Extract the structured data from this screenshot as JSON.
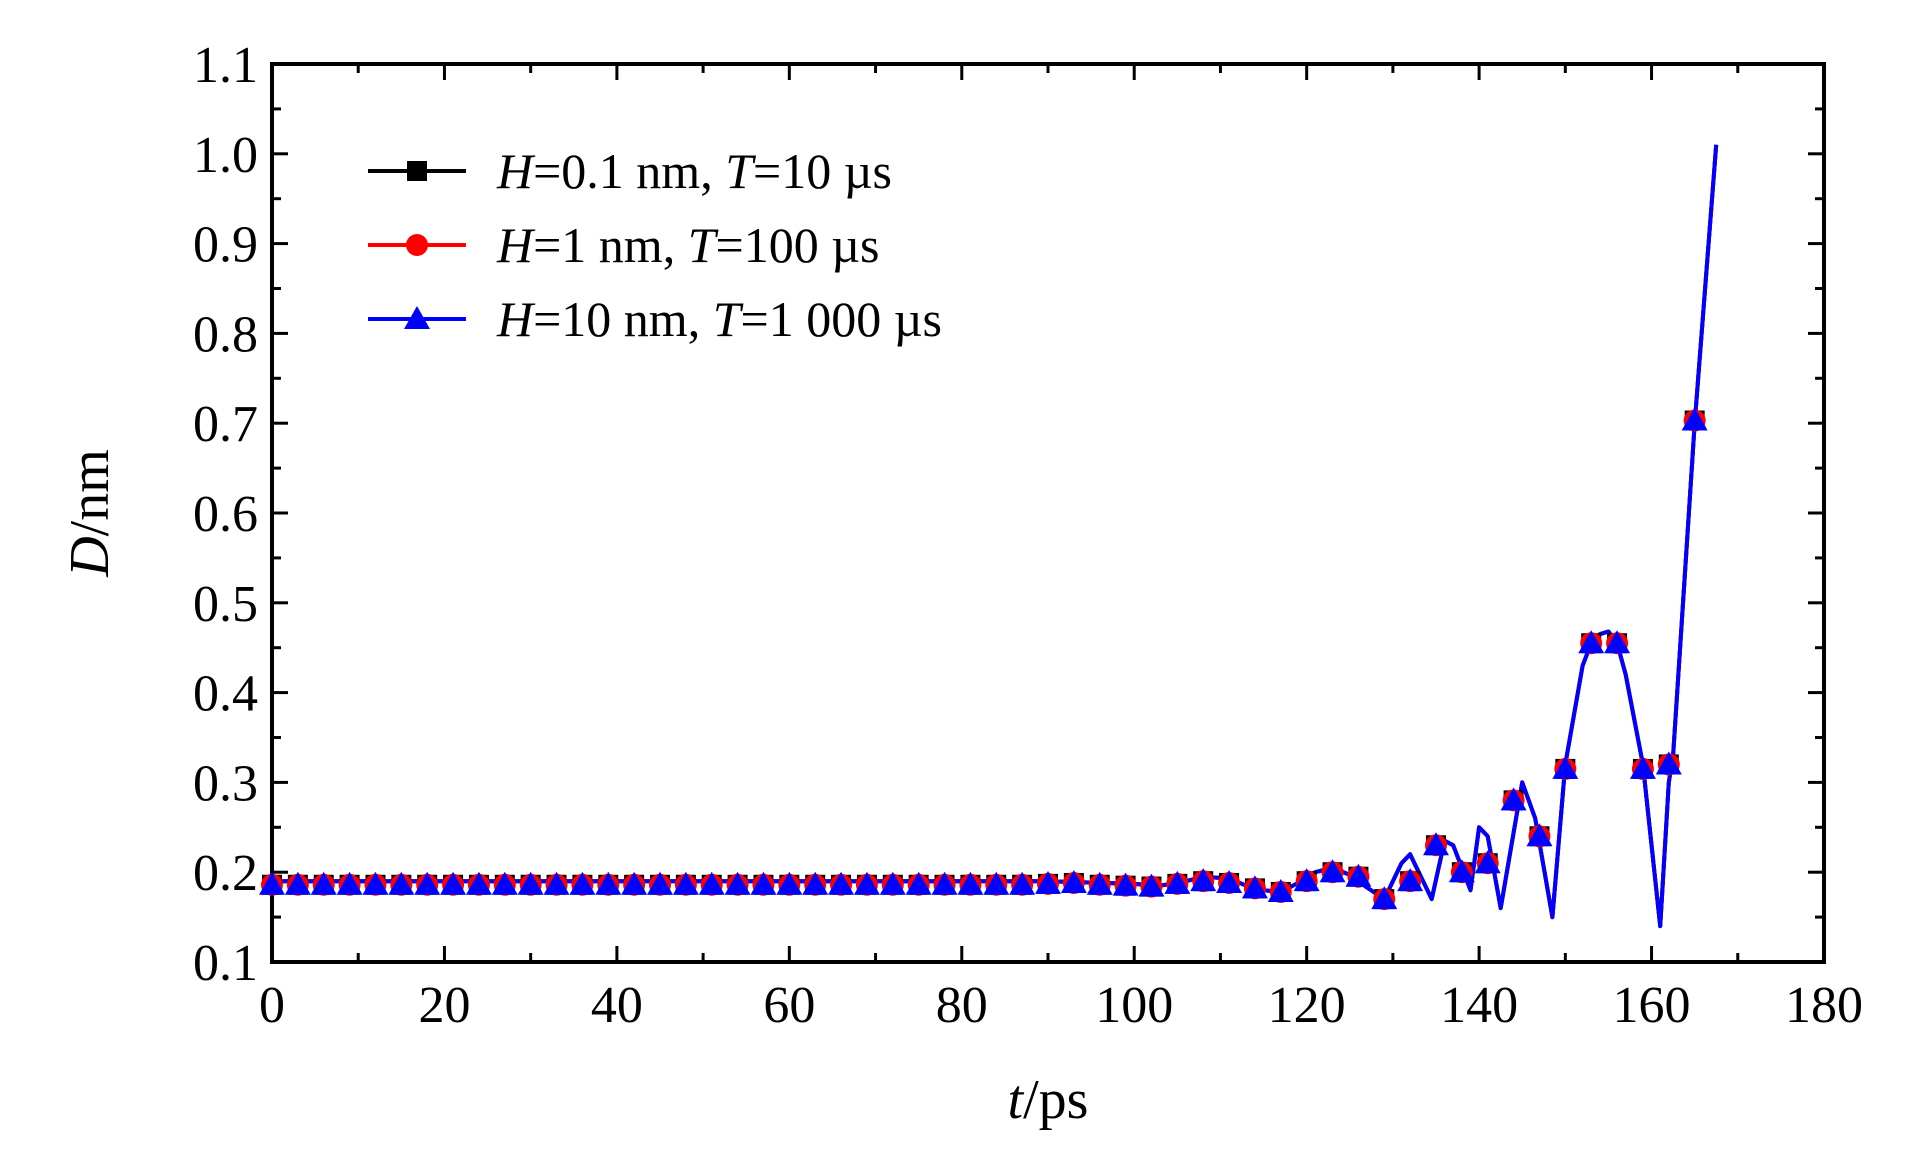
{
  "chart_data": {
    "type": "line",
    "xlabel": {
      "var": "t",
      "unit": "/ps"
    },
    "ylabel": {
      "var": "D",
      "unit": "/nm"
    },
    "xlim": [
      0,
      180
    ],
    "ylim": [
      0.1,
      1.1
    ],
    "x_ticks": [
      "0",
      "20",
      "40",
      "60",
      "80",
      "100",
      "120",
      "140",
      "160",
      "180"
    ],
    "y_ticks": [
      "0.1",
      "0.2",
      "0.3",
      "0.4",
      "0.5",
      "0.6",
      "0.7",
      "0.8",
      "0.9",
      "1.0",
      "1.1"
    ],
    "grid": false,
    "legend_position": "top-left",
    "series": [
      {
        "legend": {
          "v1": "H",
          "s1": "=0.1 nm, ",
          "v2": "T",
          "s2": "=10 µs"
        },
        "color": "#000000",
        "marker": "square"
      },
      {
        "legend": {
          "v1": "H",
          "s1": "=1 nm, ",
          "v2": "T",
          "s2": "=100 µs"
        },
        "color": "#ff0000",
        "marker": "circle"
      },
      {
        "legend": {
          "v1": "H",
          "s1": "=10 nm, ",
          "v2": "T",
          "s2": "=1 000 µs"
        },
        "color": "#0000ff",
        "marker": "triangle"
      }
    ],
    "line_points": [
      [
        0,
        0.19
      ],
      [
        10,
        0.19
      ],
      [
        20,
        0.19
      ],
      [
        30,
        0.19
      ],
      [
        40,
        0.19
      ],
      [
        50,
        0.19
      ],
      [
        60,
        0.19
      ],
      [
        70,
        0.19
      ],
      [
        80,
        0.19
      ],
      [
        90,
        0.19
      ],
      [
        100,
        0.187
      ],
      [
        103,
        0.185
      ],
      [
        106,
        0.19
      ],
      [
        108,
        0.195
      ],
      [
        111,
        0.193
      ],
      [
        113,
        0.185
      ],
      [
        115,
        0.18
      ],
      [
        117,
        0.178
      ],
      [
        119,
        0.188
      ],
      [
        121,
        0.2
      ],
      [
        123,
        0.205
      ],
      [
        125,
        0.197
      ],
      [
        127,
        0.183
      ],
      [
        129,
        0.17
      ],
      [
        131,
        0.21
      ],
      [
        132,
        0.22
      ],
      [
        133.5,
        0.19
      ],
      [
        134.5,
        0.17
      ],
      [
        136,
        0.235
      ],
      [
        137,
        0.23
      ],
      [
        139,
        0.18
      ],
      [
        140,
        0.25
      ],
      [
        141,
        0.24
      ],
      [
        142.5,
        0.16
      ],
      [
        145,
        0.3
      ],
      [
        146.5,
        0.26
      ],
      [
        148.5,
        0.15
      ],
      [
        150,
        0.32
      ],
      [
        152,
        0.43
      ],
      [
        153,
        0.455
      ],
      [
        154,
        0.465
      ],
      [
        155,
        0.468
      ],
      [
        156,
        0.455
      ],
      [
        157,
        0.42
      ],
      [
        159,
        0.32
      ],
      [
        161,
        0.14
      ],
      [
        162,
        0.3
      ],
      [
        162.5,
        0.33
      ],
      [
        165,
        0.7
      ],
      [
        167.5,
        1.01
      ]
    ],
    "marker_points": [
      [
        0,
        0.186
      ],
      [
        3,
        0.186
      ],
      [
        6,
        0.186
      ],
      [
        9,
        0.186
      ],
      [
        12,
        0.186
      ],
      [
        15,
        0.186
      ],
      [
        18,
        0.186
      ],
      [
        21,
        0.186
      ],
      [
        24,
        0.186
      ],
      [
        27,
        0.186
      ],
      [
        30,
        0.186
      ],
      [
        33,
        0.186
      ],
      [
        36,
        0.186
      ],
      [
        39,
        0.186
      ],
      [
        42,
        0.186
      ],
      [
        45,
        0.186
      ],
      [
        48,
        0.186
      ],
      [
        51,
        0.186
      ],
      [
        54,
        0.186
      ],
      [
        57,
        0.186
      ],
      [
        60,
        0.186
      ],
      [
        63,
        0.186
      ],
      [
        66,
        0.186
      ],
      [
        69,
        0.186
      ],
      [
        72,
        0.186
      ],
      [
        75,
        0.186
      ],
      [
        78,
        0.186
      ],
      [
        81,
        0.186
      ],
      [
        84,
        0.186
      ],
      [
        87,
        0.186
      ],
      [
        90,
        0.187
      ],
      [
        93,
        0.188
      ],
      [
        96,
        0.186
      ],
      [
        99,
        0.185
      ],
      [
        102,
        0.184
      ],
      [
        105,
        0.187
      ],
      [
        108,
        0.19
      ],
      [
        111,
        0.188
      ],
      [
        114,
        0.182
      ],
      [
        117,
        0.178
      ],
      [
        120,
        0.19
      ],
      [
        123,
        0.2
      ],
      [
        126,
        0.195
      ],
      [
        129,
        0.17
      ],
      [
        132,
        0.19
      ],
      [
        135,
        0.23
      ],
      [
        138,
        0.2
      ],
      [
        141,
        0.21
      ],
      [
        144,
        0.28
      ],
      [
        147,
        0.24
      ],
      [
        150,
        0.315
      ],
      [
        153,
        0.455
      ],
      [
        156,
        0.455
      ],
      [
        159,
        0.315
      ],
      [
        162,
        0.32
      ],
      [
        165,
        0.703
      ]
    ]
  }
}
